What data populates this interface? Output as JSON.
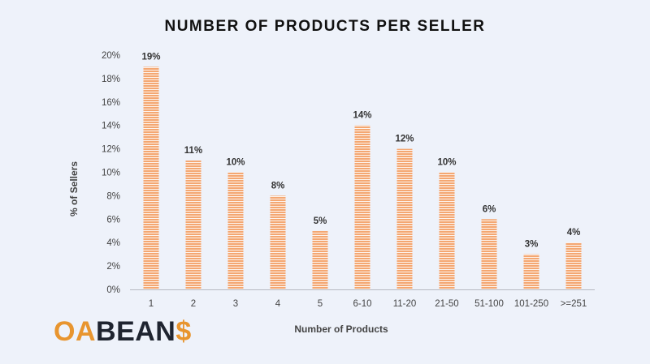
{
  "chart_data": {
    "type": "bar",
    "title": "NUMBER OF PRODUCTS PER SELLER",
    "xlabel": "Number of Products",
    "ylabel": "% of Sellers",
    "categories": [
      "1",
      "2",
      "3",
      "4",
      "5",
      "6-10",
      "11-20",
      "21-50",
      "51-100",
      "101-250",
      ">=251"
    ],
    "values": [
      19,
      11,
      10,
      8,
      5,
      14,
      12,
      10,
      6,
      3,
      4
    ],
    "data_labels": [
      "19%",
      "11%",
      "10%",
      "8%",
      "5%",
      "14%",
      "12%",
      "10%",
      "6%",
      "3%",
      "4%"
    ],
    "ylim": [
      0,
      20
    ],
    "yticks": [
      "0%",
      "2%",
      "4%",
      "6%",
      "8%",
      "10%",
      "12%",
      "14%",
      "16%",
      "18%",
      "20%"
    ],
    "grid": false,
    "bar_color": "#f4a772",
    "bar_stripe_color": "#ffffff"
  },
  "logo": {
    "text": "OABEANS",
    "primary_color": "#e8952f",
    "secondary_color": "#1f2430"
  }
}
